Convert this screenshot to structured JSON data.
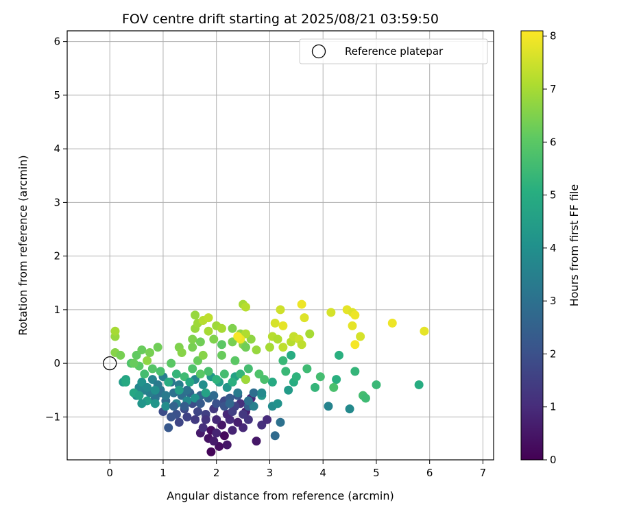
{
  "chart_data": {
    "type": "scatter",
    "title": "FOV centre drift starting at 2025/08/21 03:59:50",
    "xlabel": "Angular distance from reference (arcmin)",
    "ylabel": "Rotation from reference (arcmin)",
    "xlim": [
      -0.8,
      7.2
    ],
    "ylim": [
      -1.8,
      6.2
    ],
    "xticks": [
      0,
      1,
      2,
      3,
      4,
      5,
      6,
      7
    ],
    "yticks": [
      -1,
      0,
      1,
      2,
      3,
      4,
      5,
      6
    ],
    "xtick_labels": [
      "0",
      "1",
      "2",
      "3",
      "4",
      "5",
      "6",
      "7"
    ],
    "ytick_labels": [
      "−1",
      "0",
      "1",
      "2",
      "3",
      "4",
      "5",
      "6"
    ],
    "grid": true,
    "legend": {
      "placement": "top-right",
      "entries": [
        "Reference platepar"
      ]
    },
    "reference_point": {
      "name": "Reference platepar",
      "x": 0,
      "y": 0
    },
    "colorbar": {
      "label": "Hours from first FF file",
      "colormap": "viridis",
      "range": [
        0,
        8.1
      ],
      "ticks": [
        0,
        1,
        2,
        3,
        4,
        5,
        6,
        7,
        8
      ],
      "tick_labels": [
        "0",
        "1",
        "2",
        "3",
        "4",
        "5",
        "6",
        "7",
        "8"
      ]
    },
    "points": [
      [
        1.9,
        -1.65,
        0.1
      ],
      [
        2.05,
        -1.55,
        0.3
      ],
      [
        2.2,
        -1.52,
        0.5
      ],
      [
        1.85,
        -1.4,
        0.4
      ],
      [
        1.95,
        -1.45,
        0.6
      ],
      [
        2.15,
        -1.35,
        0.2
      ],
      [
        2.3,
        -1.25,
        0.8
      ],
      [
        2.5,
        -1.2,
        0.9
      ],
      [
        2.4,
        -1.1,
        0.7
      ],
      [
        2.1,
        -1.15,
        0.5
      ],
      [
        2.25,
        -1.05,
        1.0
      ],
      [
        1.7,
        -1.3,
        0.6
      ],
      [
        1.75,
        -1.2,
        1.1
      ],
      [
        1.9,
        -1.25,
        0.3
      ],
      [
        2.0,
        -1.3,
        0.8
      ],
      [
        2.55,
        -0.9,
        0.7
      ],
      [
        2.65,
        -0.65,
        0.9
      ],
      [
        2.75,
        -1.45,
        0.5
      ],
      [
        2.85,
        -1.15,
        1.1
      ],
      [
        2.6,
        -1.05,
        1.2
      ],
      [
        2.45,
        -0.75,
        1.1
      ],
      [
        2.2,
        -0.95,
        0.9
      ],
      [
        1.95,
        -0.85,
        1.3
      ],
      [
        1.8,
        -0.95,
        1.5
      ],
      [
        1.6,
        -1.05,
        1.4
      ],
      [
        1.65,
        -0.9,
        1.7
      ],
      [
        1.55,
        -0.75,
        1.9
      ],
      [
        1.45,
        -1.0,
        1.6
      ],
      [
        1.4,
        -0.85,
        1.8
      ],
      [
        1.3,
        -1.1,
        1.7
      ],
      [
        1.25,
        -0.95,
        2.0
      ],
      [
        1.15,
        -1.0,
        2.1
      ],
      [
        1.0,
        -0.9,
        1.9
      ],
      [
        1.1,
        -1.2,
        2.2
      ],
      [
        2.95,
        -1.05,
        1.0
      ],
      [
        2.5,
        -0.95,
        1.3
      ],
      [
        2.35,
        -0.8,
        1.6
      ],
      [
        2.15,
        -0.7,
        1.8
      ],
      [
        2.0,
        -0.75,
        2.0
      ],
      [
        2.25,
        -0.65,
        2.3
      ],
      [
        2.4,
        -0.6,
        2.2
      ],
      [
        2.6,
        -0.8,
        2.4
      ],
      [
        1.85,
        -0.65,
        2.5
      ],
      [
        1.7,
        -0.6,
        2.7
      ],
      [
        1.5,
        -0.55,
        2.6
      ],
      [
        1.35,
        -0.6,
        2.9
      ],
      [
        1.2,
        -0.55,
        3.0
      ],
      [
        1.05,
        -0.7,
        2.8
      ],
      [
        0.95,
        -0.5,
        3.2
      ],
      [
        0.85,
        -0.65,
        3.1
      ],
      [
        0.75,
        -0.55,
        3.4
      ],
      [
        0.65,
        -0.5,
        3.5
      ],
      [
        0.55,
        -0.45,
        3.7
      ],
      [
        0.5,
        -0.6,
        3.9
      ],
      [
        0.6,
        -0.35,
        4.1
      ],
      [
        0.7,
        -0.45,
        3.8
      ],
      [
        0.8,
        -0.3,
        3.6
      ],
      [
        0.9,
        -0.4,
        3.3
      ],
      [
        1.0,
        -0.25,
        3.5
      ],
      [
        1.15,
        -0.35,
        3.2
      ],
      [
        1.3,
        -0.4,
        3.4
      ],
      [
        1.45,
        -0.5,
        3.0
      ],
      [
        1.6,
        -0.3,
        3.7
      ],
      [
        1.75,
        -0.4,
        4.0
      ],
      [
        1.9,
        -0.25,
        4.3
      ],
      [
        2.05,
        -0.35,
        4.5
      ],
      [
        2.2,
        -0.45,
        4.2
      ],
      [
        2.35,
        -0.25,
        4.6
      ],
      [
        0.25,
        -0.35,
        4.4
      ],
      [
        0.3,
        -0.3,
        4.7
      ],
      [
        0.45,
        -0.55,
        4.8
      ],
      [
        0.7,
        -0.7,
        4.5
      ],
      [
        0.85,
        -0.75,
        4.2
      ],
      [
        1.05,
        -0.8,
        3.9
      ],
      [
        1.25,
        -0.75,
        3.6
      ],
      [
        1.45,
        -0.7,
        3.8
      ],
      [
        1.6,
        -0.65,
        4.1
      ],
      [
        2.55,
        -0.3,
        4.9
      ],
      [
        2.7,
        -0.8,
        3.5
      ],
      [
        2.85,
        -0.6,
        4.3
      ],
      [
        3.05,
        -0.8,
        3.9
      ],
      [
        3.15,
        -0.75,
        4.1
      ],
      [
        3.35,
        -0.5,
        4.4
      ],
      [
        3.1,
        -1.35,
        2.8
      ],
      [
        3.2,
        -1.1,
        3.0
      ],
      [
        3.45,
        -0.35,
        5.0
      ],
      [
        3.5,
        -0.25,
        5.2
      ],
      [
        3.05,
        -0.35,
        4.9
      ],
      [
        3.3,
        -0.15,
        5.4
      ],
      [
        4.1,
        -0.8,
        3.6
      ],
      [
        4.5,
        -0.85,
        3.8
      ],
      [
        4.25,
        -0.3,
        5.1
      ],
      [
        4.6,
        -0.15,
        5.3
      ],
      [
        4.75,
        -0.6,
        5.6
      ],
      [
        4.8,
        -0.65,
        5.5
      ],
      [
        5.0,
        -0.4,
        5.4
      ],
      [
        5.8,
        -0.4,
        5.0
      ],
      [
        3.95,
        -0.25,
        5.6
      ],
      [
        4.2,
        -0.45,
        5.7
      ],
      [
        3.85,
        -0.45,
        5.3
      ],
      [
        3.7,
        -0.1,
        5.5
      ],
      [
        4.3,
        0.15,
        5.1
      ],
      [
        3.4,
        0.15,
        5.0
      ],
      [
        3.25,
        0.05,
        5.4
      ],
      [
        2.8,
        -0.2,
        5.8
      ],
      [
        2.6,
        -0.1,
        5.6
      ],
      [
        2.45,
        -0.2,
        5.3
      ],
      [
        2.3,
        -0.35,
        5.1
      ],
      [
        2.15,
        -0.2,
        5.6
      ],
      [
        2.0,
        -0.3,
        5.2
      ],
      [
        1.85,
        -0.15,
        5.7
      ],
      [
        1.7,
        -0.2,
        6.0
      ],
      [
        1.55,
        -0.1,
        5.8
      ],
      [
        1.4,
        -0.25,
        5.5
      ],
      [
        1.25,
        -0.2,
        5.3
      ],
      [
        1.1,
        -0.35,
        5.0
      ],
      [
        0.95,
        -0.15,
        5.7
      ],
      [
        0.8,
        -0.1,
        5.9
      ],
      [
        0.65,
        -0.2,
        5.6
      ],
      [
        0.55,
        -0.05,
        6.0
      ],
      [
        0.4,
        0.0,
        5.8
      ],
      [
        0.5,
        0.15,
        6.1
      ],
      [
        0.6,
        0.25,
        6.2
      ],
      [
        0.75,
        0.2,
        6.4
      ],
      [
        0.9,
        0.3,
        6.3
      ],
      [
        1.3,
        0.3,
        6.5
      ],
      [
        1.35,
        0.2,
        6.6
      ],
      [
        1.55,
        0.3,
        6.4
      ],
      [
        1.65,
        0.05,
        6.2
      ],
      [
        1.75,
        0.15,
        6.6
      ],
      [
        1.6,
        0.65,
        6.8
      ],
      [
        1.65,
        0.75,
        6.9
      ],
      [
        1.55,
        0.45,
        6.5
      ],
      [
        1.7,
        0.4,
        6.3
      ],
      [
        1.95,
        0.45,
        6.5
      ],
      [
        2.1,
        0.35,
        6.0
      ],
      [
        2.3,
        0.4,
        6.4
      ],
      [
        2.5,
        0.35,
        6.6
      ],
      [
        2.65,
        0.45,
        6.7
      ],
      [
        2.55,
        0.3,
        6.3
      ],
      [
        2.75,
        0.25,
        6.8
      ],
      [
        2.1,
        0.15,
        6.2
      ],
      [
        2.35,
        0.05,
        6.0
      ],
      [
        2.55,
        -0.3,
        6.9
      ],
      [
        2.3,
        0.65,
        6.5
      ],
      [
        2.45,
        0.55,
        6.7
      ],
      [
        2.0,
        0.7,
        6.9
      ],
      [
        2.1,
        0.65,
        7.0
      ],
      [
        2.55,
        0.55,
        7.1
      ],
      [
        1.85,
        0.6,
        7.0
      ],
      [
        1.75,
        0.8,
        7.2
      ],
      [
        1.6,
        0.9,
        6.8
      ],
      [
        1.85,
        0.85,
        7.3
      ],
      [
        2.5,
        1.1,
        7.0
      ],
      [
        2.55,
        1.05,
        7.2
      ],
      [
        3.0,
        0.3,
        7.0
      ],
      [
        3.05,
        0.5,
        7.2
      ],
      [
        3.15,
        0.45,
        7.1
      ],
      [
        3.25,
        0.3,
        7.3
      ],
      [
        3.4,
        0.4,
        7.2
      ],
      [
        3.45,
        0.5,
        7.4
      ],
      [
        3.55,
        0.45,
        7.5
      ],
      [
        3.6,
        0.35,
        7.3
      ],
      [
        3.75,
        0.55,
        7.0
      ],
      [
        3.1,
        0.75,
        7.6
      ],
      [
        3.25,
        0.7,
        7.8
      ],
      [
        3.6,
        1.1,
        7.9
      ],
      [
        3.65,
        0.85,
        7.7
      ],
      [
        3.2,
        1.0,
        7.5
      ],
      [
        4.15,
        0.95,
        7.6
      ],
      [
        4.45,
        1.0,
        7.8
      ],
      [
        4.55,
        0.95,
        7.7
      ],
      [
        4.6,
        0.9,
        7.9
      ],
      [
        4.55,
        0.7,
        7.8
      ],
      [
        4.6,
        0.35,
        8.0
      ],
      [
        4.7,
        0.5,
        7.6
      ],
      [
        5.3,
        0.75,
        7.9
      ],
      [
        5.9,
        0.6,
        7.8
      ],
      [
        0.1,
        0.5,
        6.8
      ],
      [
        0.1,
        0.6,
        7.0
      ],
      [
        0.1,
        0.2,
        6.6
      ],
      [
        0.2,
        0.15,
        6.4
      ],
      [
        0.45,
        0.0,
        6.2
      ],
      [
        0.7,
        0.05,
        6.7
      ],
      [
        1.15,
        0.0,
        6.0
      ],
      [
        2.45,
        0.45,
        7.9
      ],
      [
        2.4,
        0.5,
        8.0
      ],
      [
        0.95,
        -0.55,
        3.0
      ],
      [
        1.4,
        -0.8,
        2.4
      ],
      [
        1.2,
        -0.8,
        2.6
      ],
      [
        1.05,
        -0.6,
        3.3
      ],
      [
        2.0,
        -1.05,
        0.9
      ],
      [
        1.8,
        -1.05,
        1.2
      ],
      [
        2.3,
        -0.9,
        1.5
      ],
      [
        2.15,
        -0.8,
        2.1
      ],
      [
        1.7,
        -0.75,
        2.3
      ],
      [
        1.95,
        -0.6,
        2.8
      ],
      [
        2.7,
        -0.55,
        2.9
      ],
      [
        0.85,
        -0.5,
        4.0
      ],
      [
        0.55,
        -0.6,
        4.6
      ],
      [
        2.9,
        -0.3,
        5.7
      ],
      [
        0.3,
        -0.35,
        4.9
      ],
      [
        0.6,
        -0.75,
        4.2
      ],
      [
        1.3,
        -0.5,
        4.5
      ],
      [
        1.5,
        -0.35,
        4.8
      ],
      [
        1.8,
        -0.55,
        4.6
      ],
      [
        2.4,
        -0.55,
        3.3
      ],
      [
        2.25,
        -0.75,
        2.7
      ],
      [
        2.6,
        -0.7,
        3.0
      ],
      [
        2.85,
        -0.55,
        3.8
      ]
    ]
  }
}
